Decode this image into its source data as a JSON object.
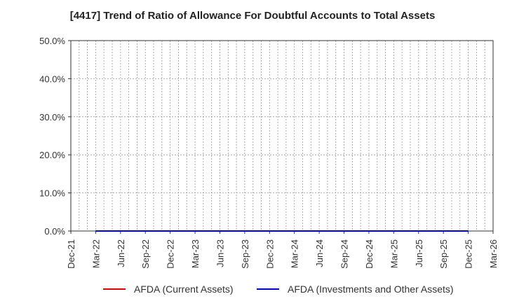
{
  "chart_data": {
    "type": "line",
    "title": "[4417]  Trend of Ratio of Allowance For Doubtful Accounts to Total Assets",
    "xlabel": "",
    "ylabel": "",
    "ylim": [
      0,
      50
    ],
    "yticks": [
      "0.0%",
      "10.0%",
      "20.0%",
      "30.0%",
      "40.0%",
      "50.0%"
    ],
    "x": [
      "Dec-21",
      "Mar-22",
      "Jun-22",
      "Sep-22",
      "Dec-22",
      "Mar-23",
      "Jun-23",
      "Sep-23",
      "Dec-23",
      "Mar-24",
      "Jun-24",
      "Sep-24",
      "Dec-24",
      "Mar-25",
      "Jun-25",
      "Sep-25",
      "Dec-25",
      "Mar-26"
    ],
    "grid": true,
    "legend_position": "bottom",
    "series": [
      {
        "name": "AFDA (Current Assets)",
        "color": "#e00000",
        "x": [
          "Mar-22",
          "Jun-22",
          "Sep-22",
          "Dec-22",
          "Mar-23",
          "Jun-23",
          "Sep-23",
          "Dec-23",
          "Mar-24",
          "Jun-24",
          "Sep-24",
          "Dec-24",
          "Mar-25",
          "Jun-25",
          "Sep-25",
          "Dec-25"
        ],
        "values": [
          0,
          0,
          0,
          0,
          0,
          0,
          0,
          0,
          0,
          0,
          0,
          0,
          0,
          0,
          0,
          0
        ]
      },
      {
        "name": "AFDA (Investments and Other Assets)",
        "color": "#0000cc",
        "x": [
          "Mar-22",
          "Jun-22",
          "Sep-22",
          "Dec-22",
          "Mar-23",
          "Jun-23",
          "Sep-23",
          "Dec-23",
          "Mar-24",
          "Jun-24",
          "Sep-24",
          "Dec-24",
          "Mar-25",
          "Jun-25",
          "Sep-25",
          "Dec-25"
        ],
        "values": [
          0,
          0,
          0,
          0,
          0,
          0,
          0,
          0,
          0,
          0,
          0,
          0,
          0,
          0,
          0,
          0
        ]
      }
    ]
  }
}
